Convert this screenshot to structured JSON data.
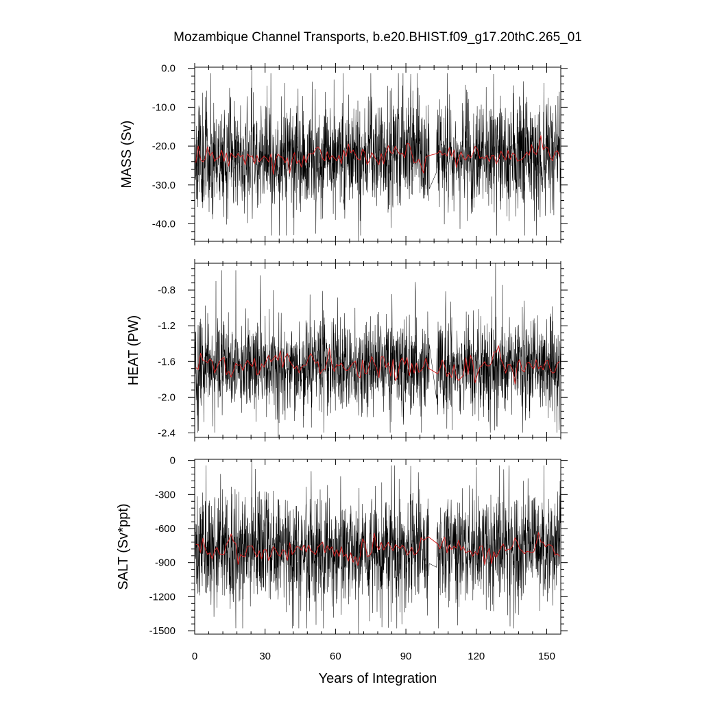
{
  "title": "Mozambique Channel Transports, b.e20.BHIST.f09_g17.20thC.265_01",
  "colors": {
    "monthly": "#000000",
    "annual": "#d42020"
  },
  "chart_data": [
    {
      "type": "line",
      "ylabel": "MASS (Sv)",
      "xlabel": "",
      "xlim": [
        0,
        156
      ],
      "ylim": [
        -44.5,
        0.3
      ],
      "yticks": [
        0,
        -10,
        -20,
        -30,
        -40
      ],
      "ytick_labels": [
        "0.0",
        "-10.0",
        "-20.0",
        "-30.0",
        "-40.0"
      ],
      "series": [
        {
          "style": "monthly",
          "mean": -22.5,
          "spread": 7,
          "min": -44.5,
          "max": 0.3,
          "seed": 11,
          "notable_points": [
            [
              24.3,
              0.3
            ],
            [
              69.8,
              -44.5
            ],
            [
              92,
              -1.5
            ],
            [
              83.6,
              -41
            ]
          ]
        },
        {
          "style": "annual",
          "mean": -22.5,
          "spread": 1.6,
          "seed": 12
        }
      ],
      "gap": [
        100,
        103
      ]
    },
    {
      "type": "line",
      "ylabel": "HEAT (PW)",
      "xlabel": "",
      "xlim": [
        0,
        156
      ],
      "ylim": [
        -2.45,
        -0.5
      ],
      "yticks": [
        -0.8,
        -1.2,
        -1.6,
        -2.0,
        -2.4
      ],
      "ytick_labels": [
        "-0.8",
        "-1.2",
        "-1.6",
        "-2.0",
        "-2.4"
      ],
      "series": [
        {
          "style": "monthly",
          "mean": -1.65,
          "spread": 0.27,
          "min": -2.45,
          "max": -0.5,
          "seed": 21,
          "notable_points": [
            [
              128.2,
              -0.5
            ],
            [
              35.6,
              -2.45
            ],
            [
              9,
              -0.7
            ]
          ]
        },
        {
          "style": "annual",
          "mean": -1.65,
          "spread": 0.07,
          "seed": 22
        }
      ],
      "gap": [
        100,
        103
      ]
    },
    {
      "type": "line",
      "ylabel": "SALT (Sv*ppt)",
      "xlabel": "Years of Integration",
      "xlim": [
        0,
        156
      ],
      "ylim": [
        -1530,
        10
      ],
      "xticks": [
        0,
        30,
        60,
        90,
        120,
        150
      ],
      "xtick_labels": [
        "0",
        "30",
        "60",
        "90",
        "120",
        "150"
      ],
      "yticks": [
        0,
        -300,
        -600,
        -900,
        -1200,
        -1500
      ],
      "ytick_labels": [
        "0",
        "-300",
        "-600",
        "-900",
        "-1200",
        "-1500"
      ],
      "series": [
        {
          "style": "monthly",
          "mean": -780,
          "spread": 240,
          "min": -1530,
          "max": 10,
          "seed": 31,
          "notable_points": [
            [
              24.3,
              10
            ],
            [
              69.8,
              -1530
            ],
            [
              92,
              -50
            ],
            [
              83.6,
              -1420
            ]
          ]
        },
        {
          "style": "annual",
          "mean": -780,
          "spread": 55,
          "seed": 32
        }
      ],
      "gap": [
        100,
        103
      ]
    }
  ]
}
